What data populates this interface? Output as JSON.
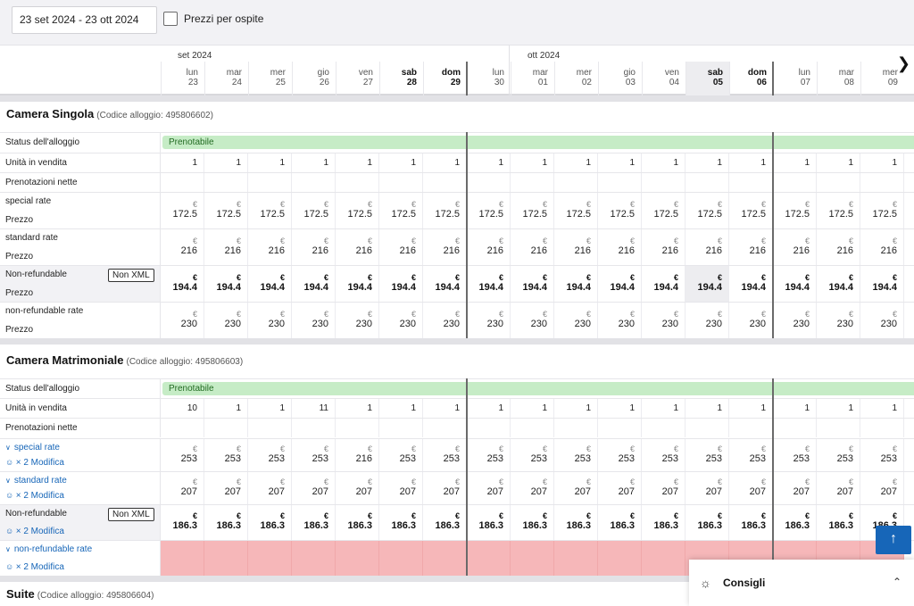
{
  "toolbar": {
    "date_range": "23 set 2024 - 23 ott 2024",
    "guest_prices_label": "Prezzi per ospite"
  },
  "calendar": {
    "months": [
      "set 2024",
      "ott 2024"
    ],
    "days": [
      {
        "name": "lun",
        "num": "23",
        "weekend": false
      },
      {
        "name": "mar",
        "num": "24",
        "weekend": false
      },
      {
        "name": "mer",
        "num": "25",
        "weekend": false
      },
      {
        "name": "gio",
        "num": "26",
        "weekend": false
      },
      {
        "name": "ven",
        "num": "27",
        "weekend": false
      },
      {
        "name": "sab",
        "num": "28",
        "weekend": true
      },
      {
        "name": "dom",
        "num": "29",
        "weekend": true
      },
      {
        "name": "lun",
        "num": "30",
        "weekend": false
      },
      {
        "name": "mar",
        "num": "01",
        "weekend": false
      },
      {
        "name": "mer",
        "num": "02",
        "weekend": false
      },
      {
        "name": "gio",
        "num": "03",
        "weekend": false
      },
      {
        "name": "ven",
        "num": "04",
        "weekend": false
      },
      {
        "name": "sab",
        "num": "05",
        "weekend": true
      },
      {
        "name": "dom",
        "num": "06",
        "weekend": true
      },
      {
        "name": "lun",
        "num": "07",
        "weekend": false
      },
      {
        "name": "mar",
        "num": "08",
        "weekend": false
      },
      {
        "name": "mer",
        "num": "09",
        "weekend": false
      }
    ],
    "highlight_index": 12,
    "next_icon": "chevron-right-icon"
  },
  "rooms": [
    {
      "title": "Camera Singola",
      "code": "(Codice alloggio: 495806602)",
      "status_label": "Status dell'alloggio",
      "status_value": "Prenotabile",
      "units_label": "Unità in vendita",
      "units": [
        "1",
        "1",
        "1",
        "1",
        "1",
        "1",
        "1",
        "1",
        "1",
        "1",
        "1",
        "1",
        "1",
        "1",
        "1",
        "1",
        "1"
      ],
      "bookings_label": "Prenotazioni nette",
      "rates": [
        {
          "name": "special rate",
          "sub": "Prezzo",
          "link": false,
          "nonxml": false,
          "bold": false,
          "pink": false,
          "values": [
            "172.5",
            "172.5",
            "172.5",
            "172.5",
            "172.5",
            "172.5",
            "172.5",
            "172.5",
            "172.5",
            "172.5",
            "172.5",
            "172.5",
            "172.5",
            "172.5",
            "172.5",
            "172.5",
            "172.5"
          ]
        },
        {
          "name": "standard rate",
          "sub": "Prezzo",
          "link": false,
          "nonxml": false,
          "bold": false,
          "pink": false,
          "values": [
            "216",
            "216",
            "216",
            "216",
            "216",
            "216",
            "216",
            "216",
            "216",
            "216",
            "216",
            "216",
            "216",
            "216",
            "216",
            "216",
            "216"
          ]
        },
        {
          "name": "Non-refundable",
          "sub": "Prezzo",
          "link": false,
          "nonxml": true,
          "bold": true,
          "pink": false,
          "values": [
            "194.4",
            "194.4",
            "194.4",
            "194.4",
            "194.4",
            "194.4",
            "194.4",
            "194.4",
            "194.4",
            "194.4",
            "194.4",
            "194.4",
            "194.4",
            "194.4",
            "194.4",
            "194.4",
            "194.4"
          ]
        },
        {
          "name": "non-refundable rate",
          "sub": "Prezzo",
          "link": false,
          "nonxml": false,
          "bold": false,
          "pink": false,
          "values": [
            "230",
            "230",
            "230",
            "230",
            "230",
            "230",
            "230",
            "230",
            "230",
            "230",
            "230",
            "230",
            "230",
            "230",
            "230",
            "230",
            "230"
          ]
        }
      ]
    },
    {
      "title": "Camera Matrimoniale",
      "code": "(Codice alloggio: 495806603)",
      "status_label": "Status dell'alloggio",
      "status_value": "Prenotabile",
      "units_label": "Unità in vendita",
      "units": [
        "10",
        "1",
        "1",
        "11",
        "1",
        "1",
        "1",
        "1",
        "1",
        "1",
        "1",
        "1",
        "1",
        "1",
        "1",
        "1",
        "1"
      ],
      "bookings_label": "Prenotazioni nette",
      "rates": [
        {
          "name": "special rate",
          "sub": "× 2 Modifica",
          "link": true,
          "nonxml": false,
          "bold": false,
          "pink": false,
          "values": [
            "253",
            "253",
            "253",
            "253",
            "216",
            "253",
            "253",
            "253",
            "253",
            "253",
            "253",
            "253",
            "253",
            "253",
            "253",
            "253",
            "253"
          ]
        },
        {
          "name": "standard rate",
          "sub": "× 2 Modifica",
          "link": true,
          "nonxml": false,
          "bold": false,
          "pink": false,
          "values": [
            "207",
            "207",
            "207",
            "207",
            "207",
            "207",
            "207",
            "207",
            "207",
            "207",
            "207",
            "207",
            "207",
            "207",
            "207",
            "207",
            "207"
          ]
        },
        {
          "name": "Non-refundable",
          "sub": "× 2 Modifica",
          "link": false,
          "nonxml": true,
          "bold": true,
          "pink": false,
          "values": [
            "186.3",
            "186.3",
            "186.3",
            "186.3",
            "186.3",
            "186.3",
            "186.3",
            "186.3",
            "186.3",
            "186.3",
            "186.3",
            "186.3",
            "186.3",
            "186.3",
            "186.3",
            "186.3",
            "186.3"
          ]
        },
        {
          "name": "non-refundable rate",
          "sub": "× 2 Modifica",
          "link": true,
          "nonxml": false,
          "bold": false,
          "pink": true,
          "values": []
        }
      ]
    },
    {
      "title": "Suite",
      "code": "(Codice alloggio: 495806604)"
    }
  ],
  "labels": {
    "currency": "€",
    "nonxml_badge": "Non XML"
  },
  "tips": {
    "label": "Consigli",
    "icon": "lightbulb-icon",
    "chevron": "chevron-up-icon"
  },
  "scroll_top_icon": "arrow-up-icon",
  "colors": {
    "status_green": "#c6ecc6",
    "link_blue": "#1766b8",
    "error_pink": "#f6b7b9"
  }
}
